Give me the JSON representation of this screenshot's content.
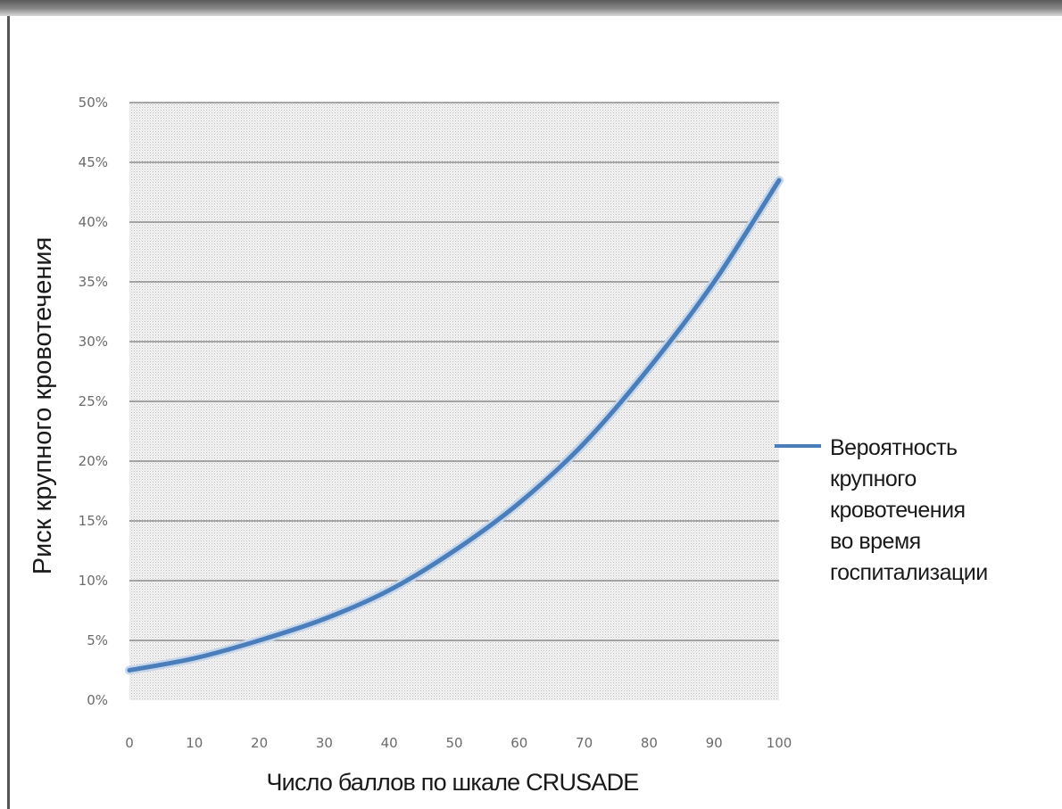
{
  "chart_data": {
    "type": "line",
    "xlabel": "Число баллов по шкале CRUSADE",
    "ylabel": "Риск крупного кровотечения",
    "xlim": [
      0,
      100
    ],
    "ylim": [
      0,
      50
    ],
    "x_ticks": [
      "0",
      "10",
      "20",
      "30",
      "40",
      "50",
      "60",
      "70",
      "80",
      "90",
      "100"
    ],
    "y_ticks": [
      "0%",
      "5%",
      "10%",
      "15%",
      "20%",
      "25%",
      "30%",
      "35%",
      "40%",
      "45%",
      "50%"
    ],
    "grid": true,
    "legend_position": "right",
    "series": [
      {
        "name": "Вероятность крупного кровотечения во время госпитализации",
        "legend_lines": [
          "Вероятность",
          "крупного",
          "кровотечения",
          "во время",
          "госпитализации"
        ],
        "color": "#4a7ebb",
        "x": [
          0,
          10,
          20,
          30,
          40,
          50,
          60,
          70,
          80,
          90,
          100
        ],
        "y": [
          2.5,
          3.5,
          5.0,
          6.8,
          9.2,
          12.5,
          16.5,
          21.5,
          27.8,
          35.0,
          43.5
        ],
        "unit": "%"
      }
    ]
  }
}
